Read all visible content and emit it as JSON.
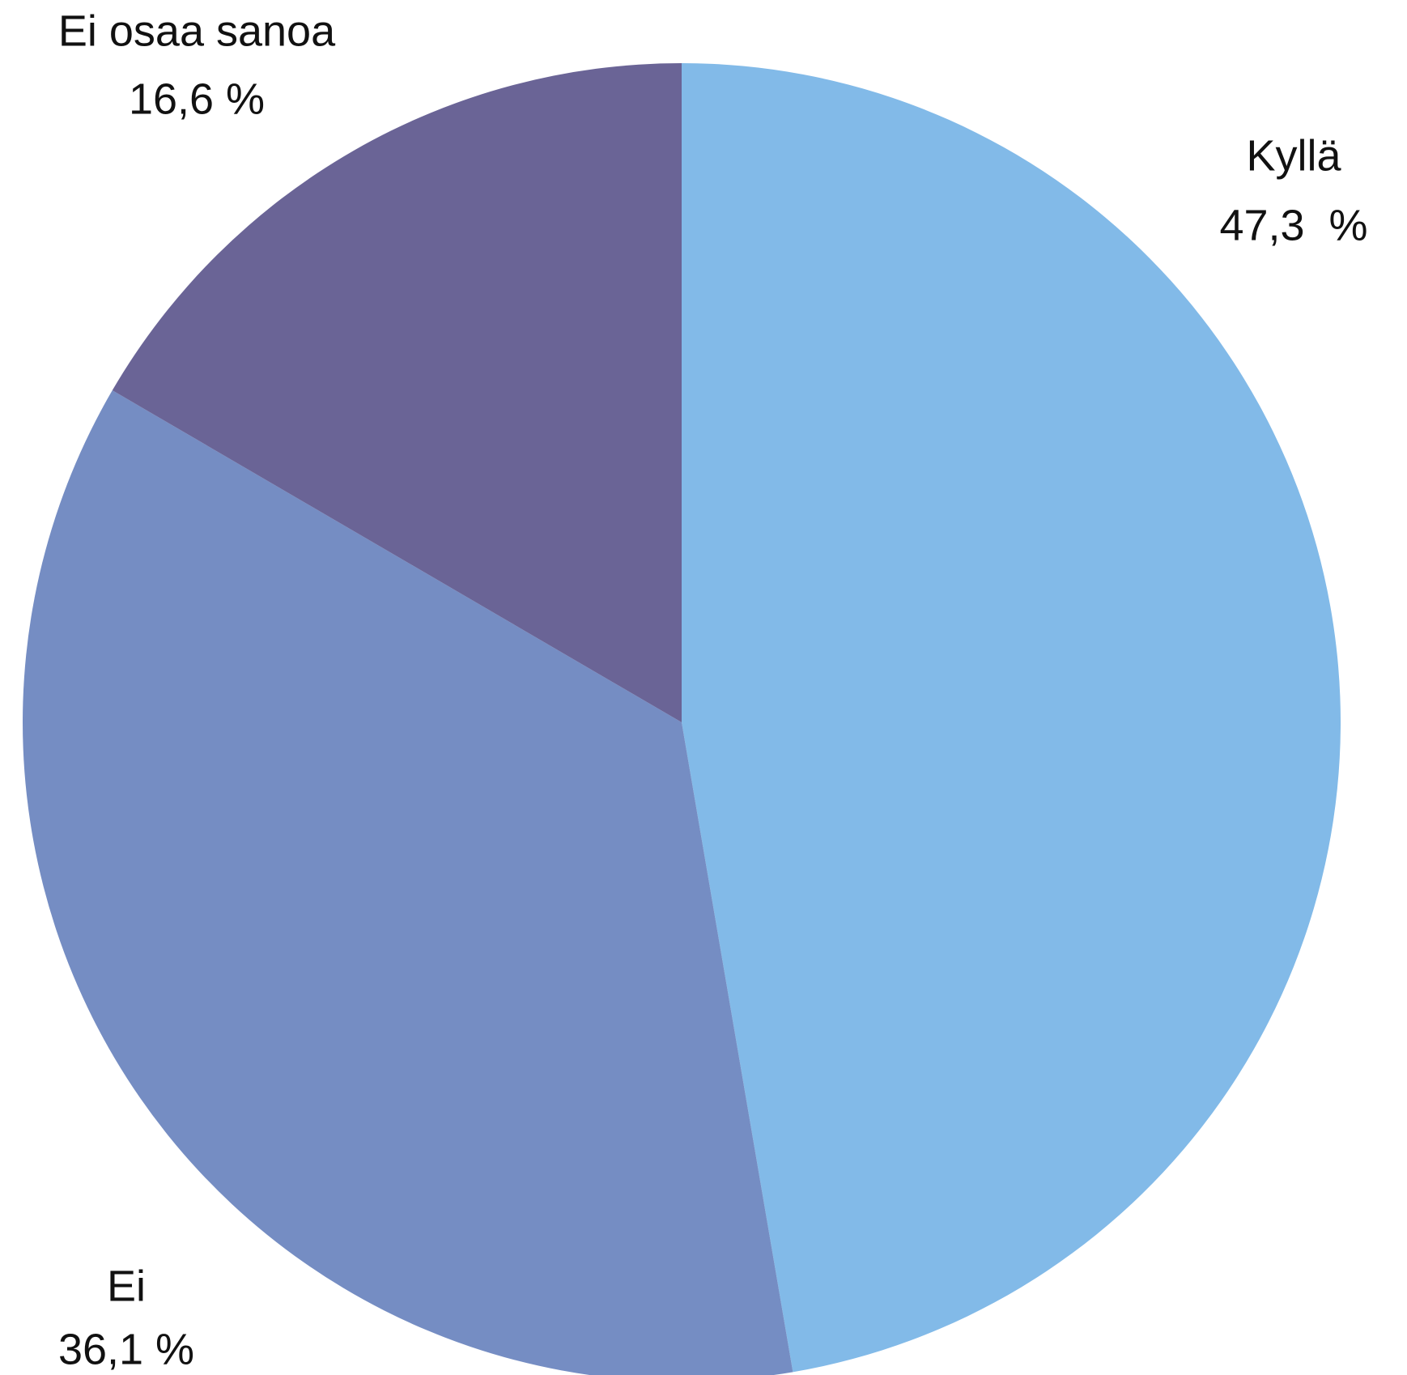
{
  "chart_data": {
    "type": "pie",
    "categories": [
      "Kyllä",
      "Ei",
      "Ei osaa sanoa"
    ],
    "values": [
      47.3,
      36.1,
      16.6
    ],
    "value_labels": [
      "47,3  %",
      "36,1 %",
      "16,6 %"
    ],
    "colors": [
      "#82bae8",
      "#758dc3",
      "#6a6496"
    ]
  }
}
